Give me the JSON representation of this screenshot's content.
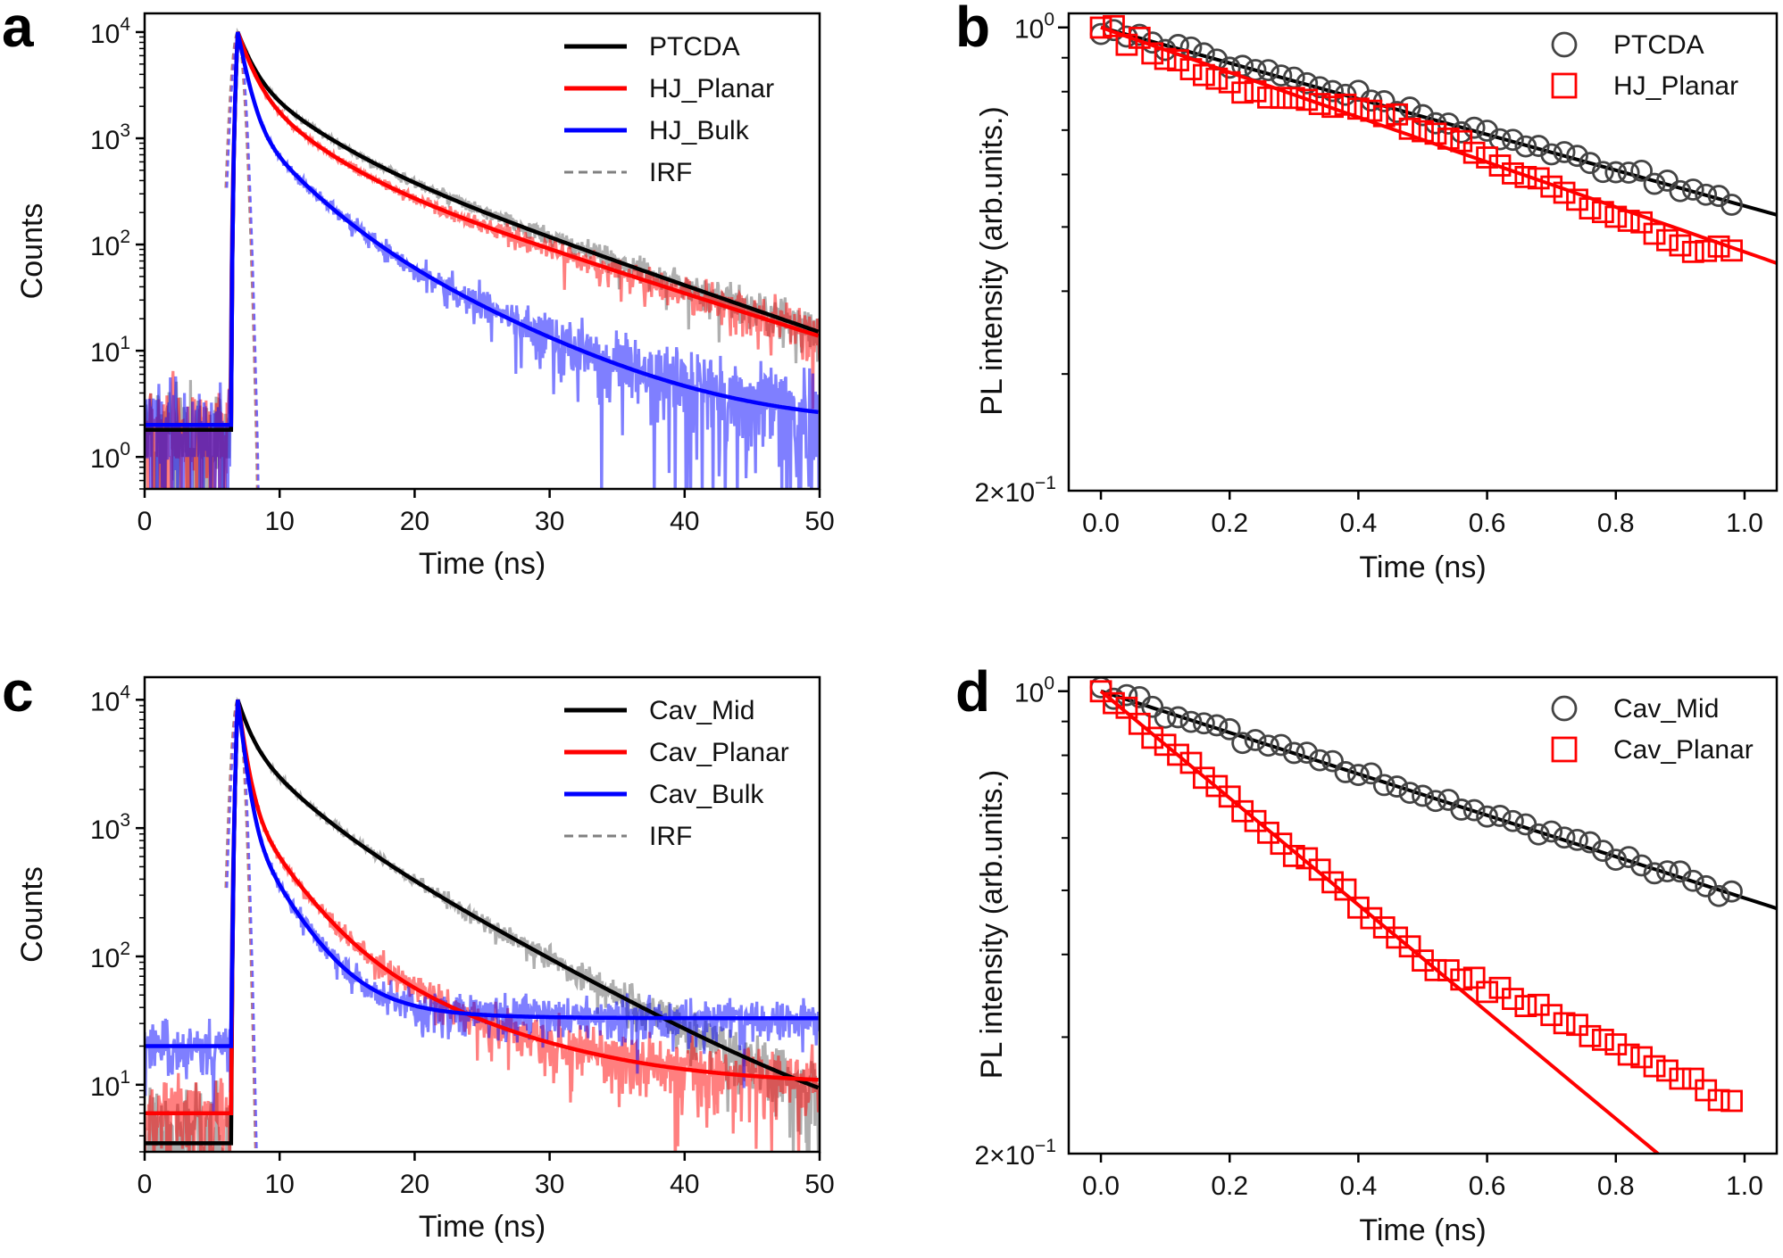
{
  "chart_data": [
    {
      "panel": "a",
      "type": "line",
      "yscale": "log",
      "xlabel": "Time (ns)",
      "ylabel": "Counts",
      "xlim": [
        0,
        50
      ],
      "ylim": [
        0.5,
        15000
      ],
      "xticks": [
        0,
        10,
        20,
        30,
        40,
        50
      ],
      "yticks": [
        {
          "value": 1,
          "base": "10",
          "exp": "0"
        },
        {
          "value": 10,
          "base": "10",
          "exp": "1"
        },
        {
          "value": 100,
          "base": "10",
          "exp": "2"
        },
        {
          "value": 1000,
          "base": "10",
          "exp": "3"
        },
        {
          "value": 10000,
          "base": "10",
          "exp": "4"
        }
      ],
      "legend_position": "top-right",
      "series": [
        {
          "name": "PTCDA",
          "color": "#000000",
          "baseline": 1.8,
          "peak_time": 6.9,
          "fit": {
            "amps": [
              6000,
              2800,
              1200
            ],
            "taus": [
              0.9,
              3.5,
              9.8
            ],
            "offset": 0.2
          }
        },
        {
          "name": "HJ_Planar",
          "color": "#ff0000",
          "baseline": 2.0,
          "peak_time": 6.9,
          "fit": {
            "amps": [
              6700,
              2500,
              800
            ],
            "taus": [
              0.9,
              3.2,
              10.5
            ],
            "offset": 0.5
          }
        },
        {
          "name": "HJ_Bulk",
          "color": "#0000ff",
          "baseline": 2.0,
          "peak_time": 6.9,
          "fit": {
            "amps": [
              8400,
              1300,
              300
            ],
            "taus": [
              0.6,
              2.8,
              7.0
            ],
            "offset": 2.0
          }
        },
        {
          "name": "IRF",
          "color": "#808080",
          "style": "dashed",
          "peak_time": 6.9
        }
      ]
    },
    {
      "panel": "b",
      "type": "scatter",
      "yscale": "log",
      "xlabel": "Time (ns)",
      "ylabel": "PL intensity (arb.units.)",
      "xlim": [
        -0.05,
        1.05
      ],
      "ylim": [
        0.2,
        1.05
      ],
      "xticks": [
        "0.0",
        "0.2",
        "0.4",
        "0.6",
        "0.8",
        "1.0"
      ],
      "ytick_label": {
        "value": 0.2,
        "mantissa": "2",
        "times": "×",
        "base": "10",
        "exp": "−1"
      },
      "ytick_top": {
        "value": 1.0,
        "base": "10",
        "exp": "0"
      },
      "legend_position": "top-right",
      "series": [
        {
          "name": "PTCDA",
          "marker": "circle",
          "color": "#444444",
          "decay_rate": 0.62,
          "x_end": 0.98
        },
        {
          "name": "HJ_Planar",
          "marker": "square",
          "color": "#ff0000",
          "decay_rate": 0.78,
          "x_end": 0.98
        }
      ]
    },
    {
      "panel": "c",
      "type": "line",
      "yscale": "log",
      "xlabel": "Time (ns)",
      "ylabel": "Counts",
      "xlim": [
        0,
        50
      ],
      "ylim": [
        3,
        15000
      ],
      "xticks": [
        0,
        10,
        20,
        30,
        40,
        50
      ],
      "yticks": [
        {
          "value": 10,
          "base": "10",
          "exp": "1"
        },
        {
          "value": 100,
          "base": "10",
          "exp": "2"
        },
        {
          "value": 1000,
          "base": "10",
          "exp": "3"
        },
        {
          "value": 10000,
          "base": "10",
          "exp": "4"
        }
      ],
      "legend_position": "top-right",
      "series": [
        {
          "name": "Cav_Mid",
          "color": "#000000",
          "baseline": 3.5,
          "peak_time": 6.9,
          "fit": {
            "amps": [
              5000,
              3000,
              2000
            ],
            "taus": [
              0.8,
              3.0,
              7.5
            ],
            "offset": 3.0
          }
        },
        {
          "name": "Cav_Planar",
          "color": "#ff0000",
          "baseline": 6.0,
          "peak_time": 6.9,
          "fit": {
            "amps": [
              8300,
              1500,
              200
            ],
            "taus": [
              0.5,
              2.5,
              8.0
            ],
            "offset": 10.0
          }
        },
        {
          "name": "Cav_Bulk",
          "color": "#0000ff",
          "baseline": 20.0,
          "peak_time": 6.9,
          "fit": {
            "amps": [
              8800,
              1100,
              100
            ],
            "taus": [
              0.45,
              2.2,
              4.5
            ],
            "offset": 33.0
          }
        },
        {
          "name": "IRF",
          "color": "#808080",
          "style": "dashed",
          "peak_time": 6.9
        }
      ]
    },
    {
      "panel": "d",
      "type": "scatter",
      "yscale": "log",
      "xlabel": "Time (ns)",
      "ylabel": "PL intensity (arb.units.)",
      "xlim": [
        -0.05,
        1.05
      ],
      "ylim": [
        0.2,
        1.05
      ],
      "xticks": [
        "0.0",
        "0.2",
        "0.4",
        "0.6",
        "0.8",
        "1.0"
      ],
      "ytick_label": {
        "value": 0.2,
        "mantissa": "2",
        "times": "×",
        "base": "10",
        "exp": "−1"
      },
      "ytick_top": {
        "value": 1.0,
        "base": "10",
        "exp": "0"
      },
      "legend_position": "top-right",
      "series": [
        {
          "name": "Cav_Mid",
          "marker": "circle",
          "color": "#444444",
          "decay_rate": 0.72,
          "x_end": 0.98
        },
        {
          "name": "Cav_Planar",
          "marker": "square",
          "color": "#ff0000",
          "decay_rate": 1.86,
          "x_end": 0.98,
          "plateau": true
        }
      ]
    }
  ]
}
